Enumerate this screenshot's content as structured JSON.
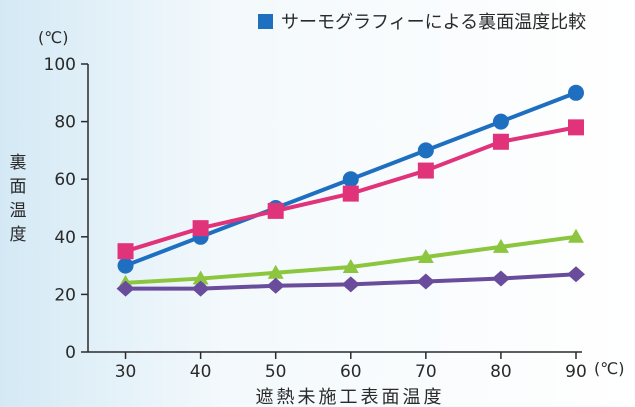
{
  "chart_data": {
    "type": "line",
    "title": "サーモグラフィーによる裏面温度比較",
    "title_marker_color": "#1f6fc1",
    "xlabel": "遮熱未施工表面温度",
    "xunit": "(℃)",
    "ylabel": "裏面温度",
    "yunit": "(℃)",
    "x": [
      30,
      40,
      50,
      60,
      70,
      80,
      90
    ],
    "xlim": [
      25,
      90
    ],
    "ylim": [
      0,
      100
    ],
    "yticks": [
      0,
      20,
      40,
      60,
      80,
      100
    ],
    "grid": false,
    "series": [
      {
        "color": "#1f6fc1",
        "marker": "circle",
        "values": [
          30,
          40,
          50,
          60,
          70,
          80,
          90
        ]
      },
      {
        "color": "#e0337a",
        "marker": "square",
        "values": [
          35,
          43,
          49,
          55,
          63,
          73,
          78
        ]
      },
      {
        "color": "#8cc63e",
        "marker": "triangle",
        "values": [
          24,
          25.5,
          27.5,
          29.5,
          33,
          36.5,
          40
        ]
      },
      {
        "color": "#6a4c9c",
        "marker": "diamond",
        "values": [
          22,
          22,
          23,
          23.5,
          24.5,
          25.5,
          27
        ]
      }
    ]
  }
}
